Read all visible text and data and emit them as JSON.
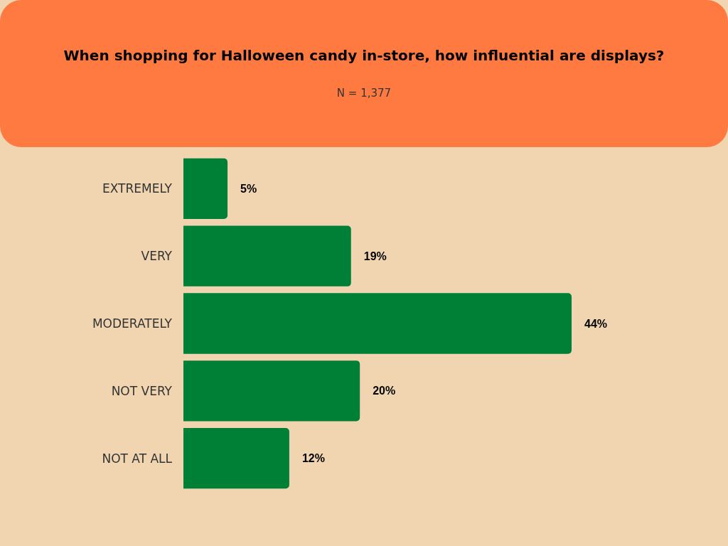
{
  "chart_data": {
    "type": "bar",
    "orientation": "horizontal",
    "title": "When shopping for Halloween candy in-store, how influential are displays?",
    "subtitle": "N = 1,377",
    "categories": [
      "EXTREMELY",
      "VERY",
      "MODERATELY",
      "NOT VERY",
      "NOT AT ALL"
    ],
    "values": [
      5,
      19,
      44,
      20,
      12
    ],
    "value_labels": [
      "5%",
      "19%",
      "44%",
      "20%",
      "12%"
    ],
    "color": "#008037"
  }
}
